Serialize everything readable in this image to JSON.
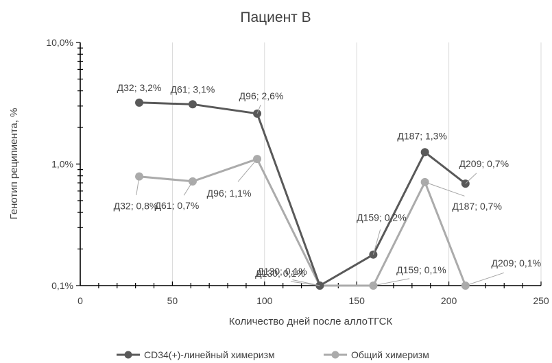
{
  "chart_data": {
    "type": "line",
    "title": "Пациент В",
    "xlabel": "Количество дней после аллоТГСК",
    "ylabel": "Генотип реципиента, %",
    "xlim": [
      0,
      250
    ],
    "ylim": [
      0.1,
      10
    ],
    "y_scale": "log",
    "x_ticks": [
      0,
      50,
      100,
      150,
      200,
      250
    ],
    "x_tick_labels": [
      "0",
      "50",
      "100",
      "150",
      "200",
      "250"
    ],
    "y_ticks": [
      0.1,
      1,
      10
    ],
    "y_tick_labels": [
      "0,1%",
      "1,0%",
      "10,0%"
    ],
    "grid": "vertical",
    "legend_position": "bottom",
    "series": [
      {
        "name": "CD34(+)-линейный химеризм",
        "color": "#595959",
        "x": [
          32,
          61,
          96,
          130,
          159,
          187,
          209
        ],
        "y": [
          3.2,
          3.1,
          2.6,
          0.1,
          0.18,
          1.25,
          0.69
        ],
        "labels": [
          "Д32; 3,2%",
          "Д61; 3,1%",
          "Д96; 2,6%",
          "Д130; 0,1%",
          "Д159; 0,2%",
          "Д187; 1,3%",
          "Д209; 0,7%"
        ]
      },
      {
        "name": "Общий химеризм",
        "color": "#ababab",
        "x": [
          32,
          61,
          96,
          130,
          159,
          187,
          209
        ],
        "y": [
          0.79,
          0.72,
          1.1,
          0.1,
          0.1,
          0.71,
          0.1
        ],
        "labels": [
          "Д32; 0,8%",
          "Д61; 0,7%",
          "Д96; 1,1%",
          "Д130; 0,1%",
          "Д159; 0,1%",
          "Д187; 0,7%",
          "Д209; 0,1%"
        ]
      }
    ]
  }
}
